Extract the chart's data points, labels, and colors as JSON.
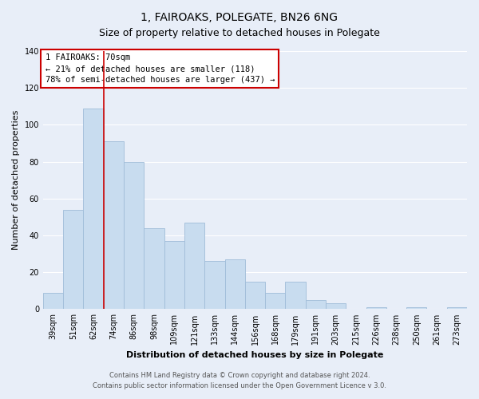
{
  "title": "1, FAIROAKS, POLEGATE, BN26 6NG",
  "subtitle": "Size of property relative to detached houses in Polegate",
  "xlabel": "Distribution of detached houses by size in Polegate",
  "ylabel": "Number of detached properties",
  "categories": [
    "39sqm",
    "51sqm",
    "62sqm",
    "74sqm",
    "86sqm",
    "98sqm",
    "109sqm",
    "121sqm",
    "133sqm",
    "144sqm",
    "156sqm",
    "168sqm",
    "179sqm",
    "191sqm",
    "203sqm",
    "215sqm",
    "226sqm",
    "238sqm",
    "250sqm",
    "261sqm",
    "273sqm"
  ],
  "values": [
    9,
    54,
    109,
    91,
    80,
    44,
    37,
    47,
    26,
    27,
    15,
    9,
    15,
    5,
    3,
    0,
    1,
    0,
    1,
    0,
    1
  ],
  "bar_fill_color": "#c8dcef",
  "bar_edge_color": "#a0bcd8",
  "marker_bar_index": 2,
  "marker_color": "#cc0000",
  "ylim": [
    0,
    140
  ],
  "yticks": [
    0,
    20,
    40,
    60,
    80,
    100,
    120,
    140
  ],
  "annotation_title": "1 FAIROAKS: 70sqm",
  "annotation_line1": "← 21% of detached houses are smaller (118)",
  "annotation_line2": "78% of semi-detached houses are larger (437) →",
  "annotation_box_facecolor": "#ffffff",
  "annotation_box_edgecolor": "#cc0000",
  "footer1": "Contains HM Land Registry data © Crown copyright and database right 2024.",
  "footer2": "Contains public sector information licensed under the Open Government Licence v 3.0.",
  "background_color": "#e8eef8",
  "plot_background": "#e8eef8",
  "grid_color": "#ffffff",
  "title_fontsize": 10,
  "subtitle_fontsize": 9,
  "axis_label_fontsize": 8,
  "tick_fontsize": 7,
  "annotation_fontsize": 7.5,
  "footer_fontsize": 6
}
